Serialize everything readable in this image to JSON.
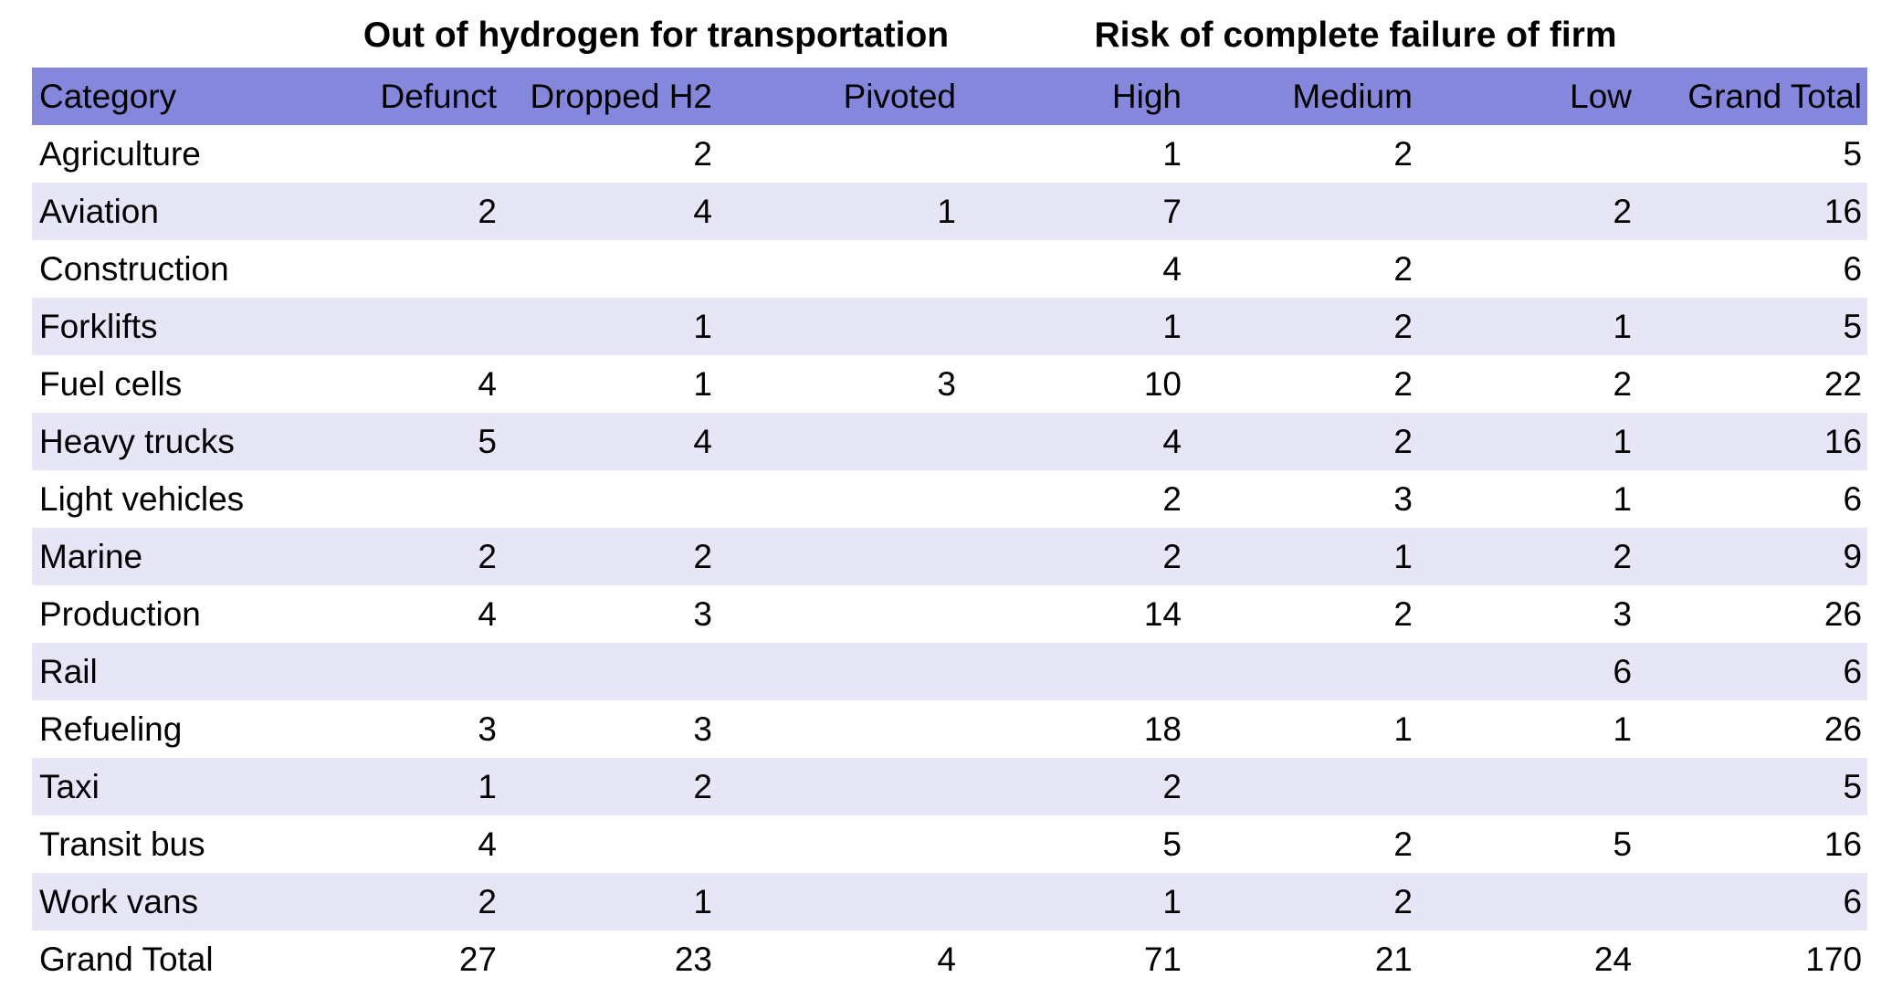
{
  "chart_data": {
    "type": "table",
    "title": "",
    "group_titles": [
      "Out of hydrogen for transportation",
      "Risk of complete failure of firm"
    ],
    "group_spans": [
      [
        "Defunct",
        "Dropped H2",
        "Pivoted"
      ],
      [
        "High",
        "Medium",
        "Low"
      ]
    ],
    "columns": [
      "Category",
      "Defunct",
      "Dropped H2",
      "Pivoted",
      "High",
      "Medium",
      "Low",
      "Grand Total"
    ],
    "rows": [
      [
        "Agriculture",
        null,
        2,
        null,
        1,
        2,
        null,
        5
      ],
      [
        "Aviation",
        2,
        4,
        1,
        7,
        null,
        2,
        16
      ],
      [
        "Construction",
        null,
        null,
        null,
        4,
        2,
        null,
        6
      ],
      [
        "Forklifts",
        null,
        1,
        null,
        1,
        2,
        1,
        5
      ],
      [
        "Fuel cells",
        4,
        1,
        3,
        10,
        2,
        2,
        22
      ],
      [
        "Heavy trucks",
        5,
        4,
        null,
        4,
        2,
        1,
        16
      ],
      [
        "Light vehicles",
        null,
        null,
        null,
        2,
        3,
        1,
        6
      ],
      [
        "Marine",
        2,
        2,
        null,
        2,
        1,
        2,
        9
      ],
      [
        "Production",
        4,
        3,
        null,
        14,
        2,
        3,
        26
      ],
      [
        "Rail",
        null,
        null,
        null,
        null,
        null,
        6,
        6
      ],
      [
        "Refueling",
        3,
        3,
        null,
        18,
        1,
        1,
        26
      ],
      [
        "Taxi",
        1,
        2,
        null,
        2,
        null,
        null,
        5
      ],
      [
        "Transit bus",
        4,
        null,
        null,
        5,
        2,
        5,
        16
      ],
      [
        "Work vans",
        2,
        1,
        null,
        1,
        2,
        null,
        6
      ],
      [
        "Grand Total",
        27,
        23,
        4,
        71,
        21,
        24,
        170
      ]
    ],
    "layout": {
      "zebra_striping": true,
      "grid": false,
      "numeric_alignment": "right"
    },
    "colors": {
      "header_bg": "#8587dd",
      "row_alt_bg": "#e6e6f7",
      "row_bg": "#ffffff",
      "text": "#000000"
    }
  }
}
